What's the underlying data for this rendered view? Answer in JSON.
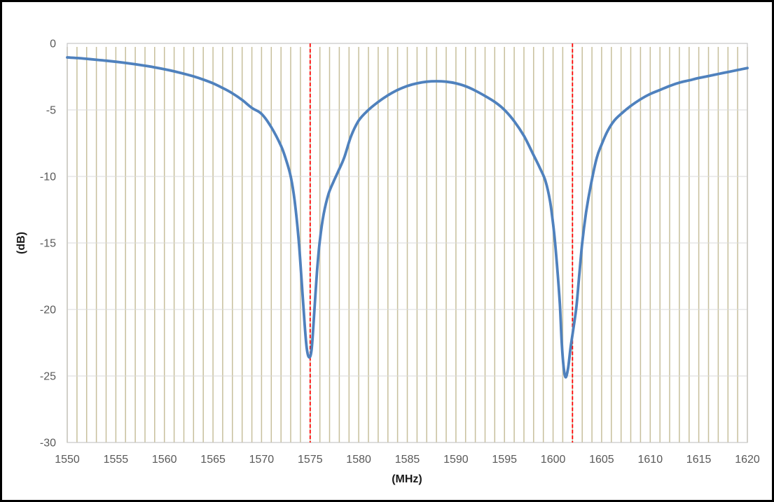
{
  "chart_data": {
    "type": "line",
    "title": "",
    "xlabel": "(MHz)",
    "ylabel": "(dB)",
    "xlim": [
      1550,
      1620
    ],
    "ylim": [
      -30,
      0
    ],
    "x_ticks": [
      1550,
      1555,
      1560,
      1565,
      1570,
      1575,
      1580,
      1585,
      1590,
      1595,
      1600,
      1605,
      1610,
      1615,
      1620
    ],
    "y_ticks": [
      0,
      -5,
      -10,
      -15,
      -20,
      -25,
      -30
    ],
    "minor_x_grid_step_mhz": 1,
    "grid": true,
    "legend_position": "none",
    "marker_lines_mhz": [
      1575,
      1602
    ],
    "notches": [
      {
        "freq_mhz": 1574.9,
        "depth_db": -23.6
      },
      {
        "freq_mhz": 1601.3,
        "depth_db": -25.1
      }
    ],
    "series": [
      {
        "points": [
          [
            1550,
            -1.05
          ],
          [
            1551,
            -1.1
          ],
          [
            1552,
            -1.16
          ],
          [
            1553,
            -1.23
          ],
          [
            1554,
            -1.3
          ],
          [
            1555,
            -1.38
          ],
          [
            1556,
            -1.47
          ],
          [
            1557,
            -1.57
          ],
          [
            1558,
            -1.68
          ],
          [
            1559,
            -1.8
          ],
          [
            1560,
            -1.94
          ],
          [
            1561,
            -2.1
          ],
          [
            1562,
            -2.28
          ],
          [
            1563,
            -2.48
          ],
          [
            1564,
            -2.72
          ],
          [
            1565,
            -3.0
          ],
          [
            1566,
            -3.35
          ],
          [
            1567,
            -3.75
          ],
          [
            1568,
            -4.25
          ],
          [
            1569,
            -4.85
          ],
          [
            1570,
            -5.3
          ],
          [
            1571,
            -6.3
          ],
          [
            1572,
            -7.7
          ],
          [
            1572.5,
            -8.7
          ],
          [
            1573,
            -10.0
          ],
          [
            1573.4,
            -11.8
          ],
          [
            1573.8,
            -14.6
          ],
          [
            1574.1,
            -17.6
          ],
          [
            1574.4,
            -20.8
          ],
          [
            1574.65,
            -22.9
          ],
          [
            1574.9,
            -23.6
          ],
          [
            1575.15,
            -23.0
          ],
          [
            1575.4,
            -20.5
          ],
          [
            1575.7,
            -17.2
          ],
          [
            1576,
            -14.8
          ],
          [
            1576.4,
            -12.8
          ],
          [
            1576.9,
            -11.3
          ],
          [
            1577.4,
            -10.4
          ],
          [
            1577.9,
            -9.6
          ],
          [
            1578.5,
            -8.6
          ],
          [
            1579.2,
            -7.0
          ],
          [
            1580,
            -5.8
          ],
          [
            1581,
            -5.0
          ],
          [
            1582,
            -4.4
          ],
          [
            1583,
            -3.9
          ],
          [
            1584,
            -3.5
          ],
          [
            1585,
            -3.2
          ],
          [
            1586,
            -3.0
          ],
          [
            1587,
            -2.88
          ],
          [
            1588,
            -2.84
          ],
          [
            1589,
            -2.88
          ],
          [
            1590,
            -3.0
          ],
          [
            1591,
            -3.22
          ],
          [
            1592,
            -3.55
          ],
          [
            1593,
            -3.95
          ],
          [
            1594,
            -4.4
          ],
          [
            1595,
            -5.0
          ],
          [
            1596,
            -5.85
          ],
          [
            1597,
            -6.95
          ],
          [
            1598,
            -8.4
          ],
          [
            1598.6,
            -9.3
          ],
          [
            1599.2,
            -10.3
          ],
          [
            1599.7,
            -11.9
          ],
          [
            1600.1,
            -14.2
          ],
          [
            1600.4,
            -16.6
          ],
          [
            1600.7,
            -19.6
          ],
          [
            1600.9,
            -22.6
          ],
          [
            1601.1,
            -24.4
          ],
          [
            1601.3,
            -25.1
          ],
          [
            1601.55,
            -24.4
          ],
          [
            1601.8,
            -22.9
          ],
          [
            1602.1,
            -21.4
          ],
          [
            1602.4,
            -19.8
          ],
          [
            1602.7,
            -17.4
          ],
          [
            1603,
            -15.0
          ],
          [
            1603.4,
            -12.7
          ],
          [
            1603.9,
            -10.6
          ],
          [
            1604.5,
            -8.6
          ],
          [
            1605,
            -7.6
          ],
          [
            1605.6,
            -6.6
          ],
          [
            1606.3,
            -5.8
          ],
          [
            1607,
            -5.3
          ],
          [
            1608,
            -4.7
          ],
          [
            1609,
            -4.2
          ],
          [
            1610,
            -3.8
          ],
          [
            1611,
            -3.5
          ],
          [
            1612,
            -3.2
          ],
          [
            1613,
            -2.95
          ],
          [
            1614,
            -2.78
          ],
          [
            1615,
            -2.6
          ],
          [
            1616,
            -2.45
          ],
          [
            1617,
            -2.3
          ],
          [
            1618,
            -2.15
          ],
          [
            1619,
            -2.0
          ],
          [
            1620,
            -1.85
          ]
        ]
      }
    ]
  },
  "colors": {
    "background": "#ffffff",
    "curve_blue": "#4F81BD",
    "minor_grid_tan": "#C7BF9C",
    "major_grid_gray": "#D9D9D9",
    "plot_border_gray": "#C6C6C6",
    "marker_red": "#FF0000",
    "tick_label_gray": "#595959",
    "axis_title_black": "#1a1a1a",
    "outer_frame_black": "#000000"
  }
}
